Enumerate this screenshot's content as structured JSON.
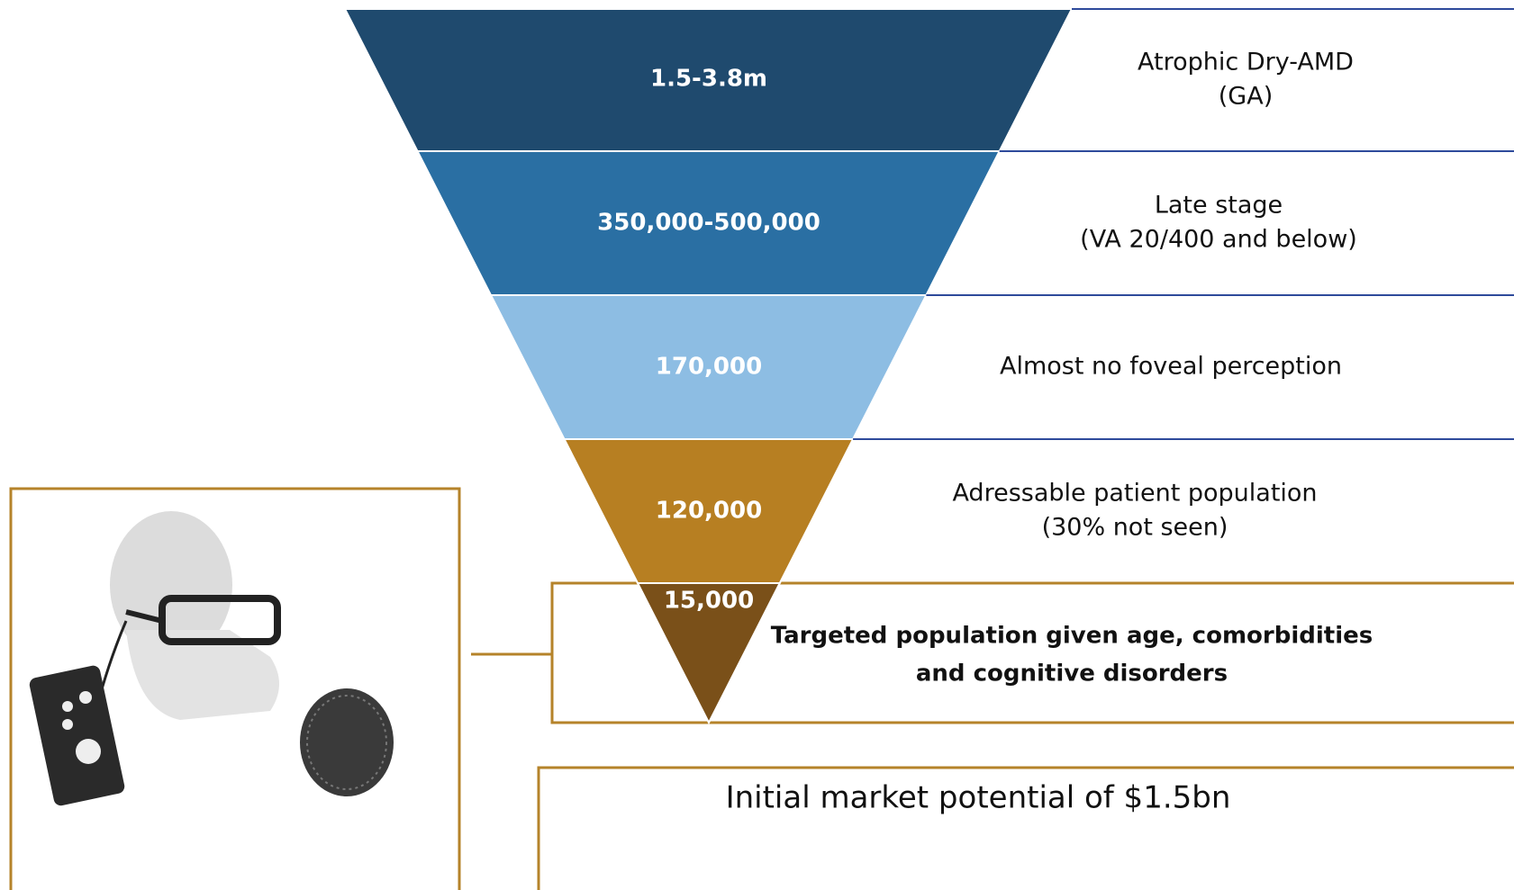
{
  "funnel": {
    "levels": [
      {
        "value": "1.5-3.8m",
        "description": [
          "Atrophic Dry-AMD",
          "(GA)"
        ]
      },
      {
        "value": "350,000-500,000",
        "description": [
          "Late stage",
          "(VA 20/400 and below)"
        ]
      },
      {
        "value": "170,000",
        "description": [
          "Almost no foveal perception"
        ]
      },
      {
        "value": "120,000",
        "description": [
          "Adressable patient population",
          "(30% not seen)"
        ]
      },
      {
        "value": "15,000",
        "description": [
          "Targeted population given age, comorbidities",
          "and cognitive disorders"
        ]
      }
    ]
  },
  "footer": "Initial market potential of $1.5bn"
}
